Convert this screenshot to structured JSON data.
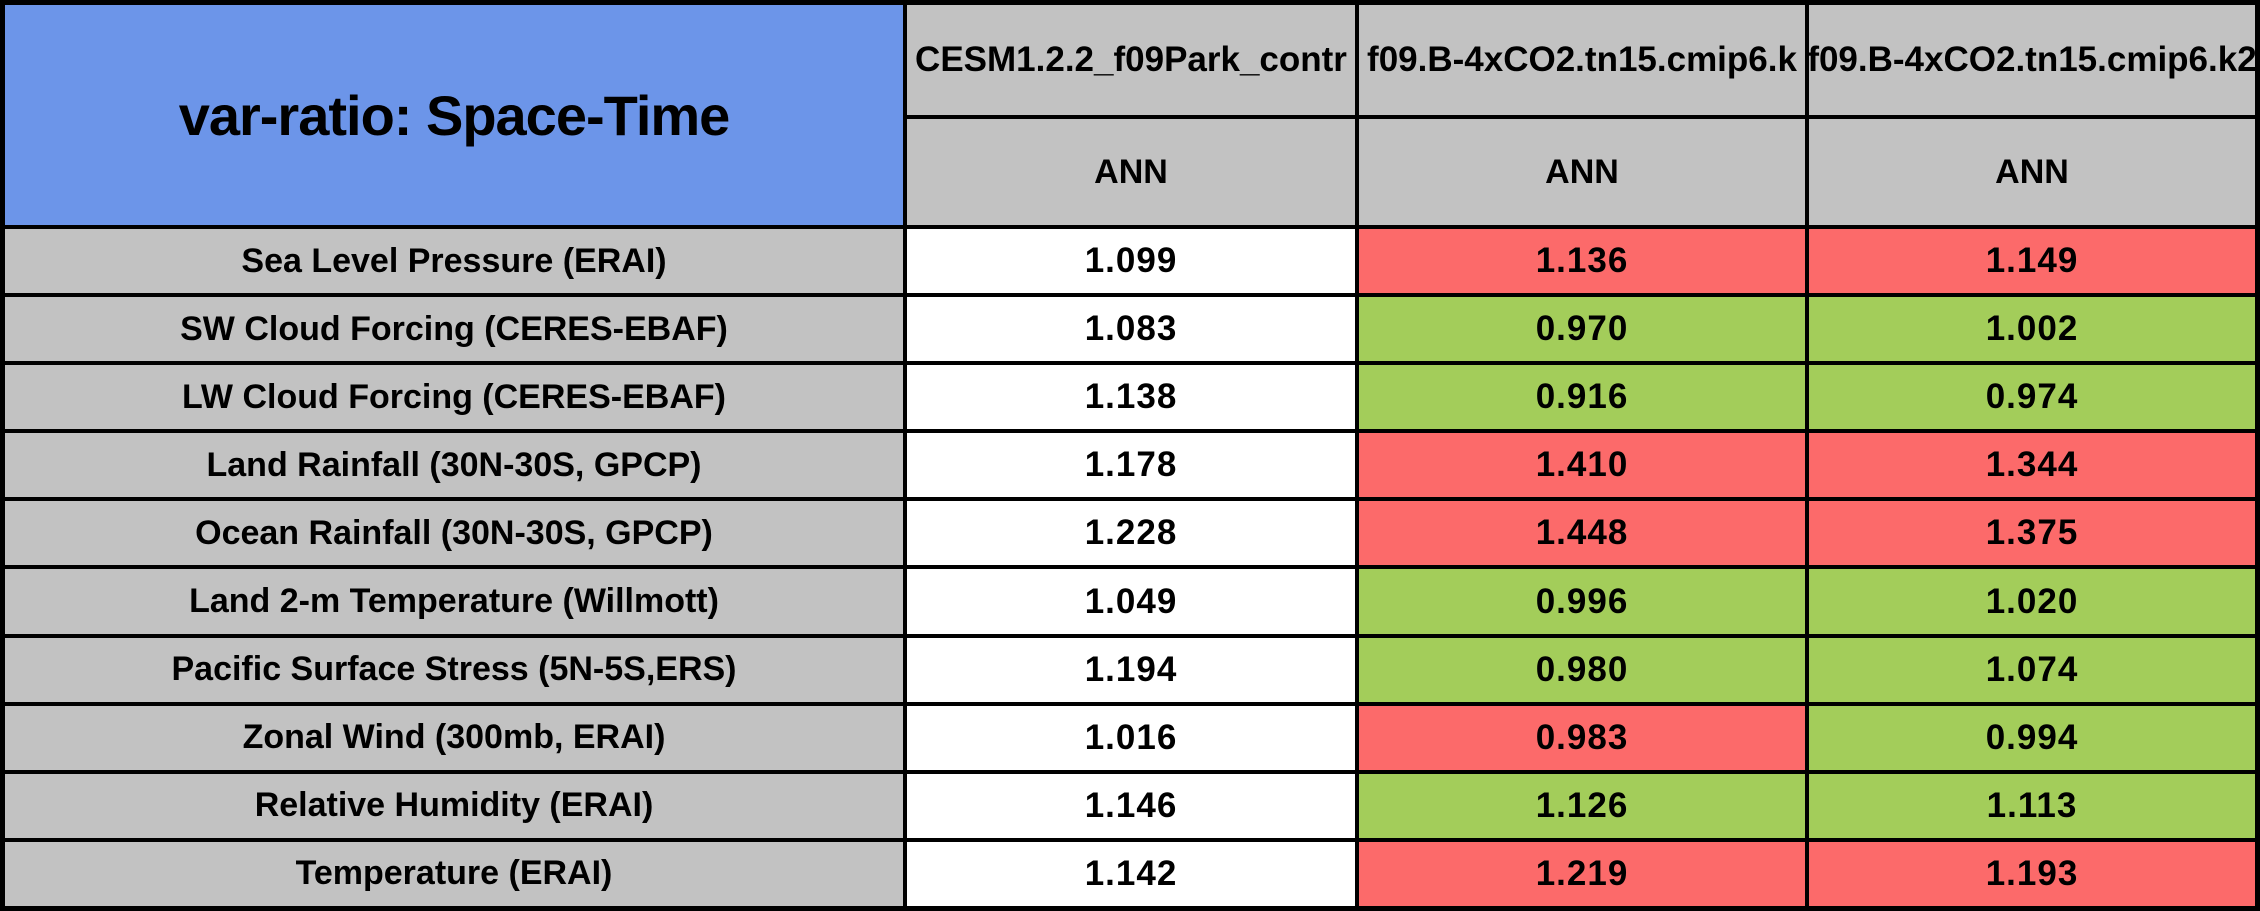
{
  "title": "var-ratio: Space-Time",
  "header": {
    "columns": [
      {
        "model": "CESM1.2.2_f09Park_contr",
        "season": "ANN"
      },
      {
        "model": "f09.B-4xCO2.tn15.cmip6.k",
        "season": "ANN"
      },
      {
        "model": "f09.B-4xCO2.tn15.cmip6.k2",
        "season": "ANN"
      }
    ]
  },
  "rows": [
    {
      "label": "Sea Level Pressure (ERAI)",
      "values": [
        "1.099",
        "1.136",
        "1.149"
      ],
      "cell_colors": [
        "white",
        "red",
        "red"
      ]
    },
    {
      "label": "SW Cloud Forcing (CERES-EBAF)",
      "values": [
        "1.083",
        "0.970",
        "1.002"
      ],
      "cell_colors": [
        "white",
        "green",
        "green"
      ]
    },
    {
      "label": "LW Cloud Forcing (CERES-EBAF)",
      "values": [
        "1.138",
        "0.916",
        "0.974"
      ],
      "cell_colors": [
        "white",
        "green",
        "green"
      ]
    },
    {
      "label": "Land Rainfall (30N-30S, GPCP)",
      "values": [
        "1.178",
        "1.410",
        "1.344"
      ],
      "cell_colors": [
        "white",
        "red",
        "red"
      ]
    },
    {
      "label": "Ocean Rainfall (30N-30S, GPCP)",
      "values": [
        "1.228",
        "1.448",
        "1.375"
      ],
      "cell_colors": [
        "white",
        "red",
        "red"
      ]
    },
    {
      "label": "Land 2-m Temperature (Willmott)",
      "values": [
        "1.049",
        "0.996",
        "1.020"
      ],
      "cell_colors": [
        "white",
        "green",
        "green"
      ]
    },
    {
      "label": "Pacific Surface Stress (5N-5S,ERS)",
      "values": [
        "1.194",
        "0.980",
        "1.074"
      ],
      "cell_colors": [
        "white",
        "green",
        "green"
      ]
    },
    {
      "label": "Zonal Wind (300mb, ERAI)",
      "values": [
        "1.016",
        "0.983",
        "0.994"
      ],
      "cell_colors": [
        "white",
        "red",
        "green"
      ]
    },
    {
      "label": "Relative Humidity (ERAI)",
      "values": [
        "1.146",
        "1.126",
        "1.113"
      ],
      "cell_colors": [
        "white",
        "green",
        "green"
      ]
    },
    {
      "label": "Temperature (ERAI)",
      "values": [
        "1.142",
        "1.219",
        "1.193"
      ],
      "cell_colors": [
        "white",
        "red",
        "red"
      ]
    }
  ],
  "palette": {
    "header_blue": "#6C95E9",
    "header_gray": "#C2C2C2",
    "white": "#FFFFFF",
    "red": "#FC6A6A",
    "green": "#A3CD5A",
    "border_black": "#000000"
  },
  "chart_data": {
    "type": "table",
    "title": "var-ratio: Space-Time",
    "column_headers": [
      "CESM1.2.2_f09Park_contr / ANN",
      "f09.B-4xCO2.tn15.cmip6.k / ANN",
      "f09.B-4xCO2.tn15.cmip6.k2 / ANN"
    ],
    "row_labels": [
      "Sea Level Pressure (ERAI)",
      "SW Cloud Forcing (CERES-EBAF)",
      "LW Cloud Forcing (CERES-EBAF)",
      "Land Rainfall (30N-30S, GPCP)",
      "Ocean Rainfall (30N-30S, GPCP)",
      "Land 2-m Temperature (Willmott)",
      "Pacific Surface Stress (5N-5S,ERS)",
      "Zonal Wind (300mb, ERAI)",
      "Relative Humidity (ERAI)",
      "Temperature (ERAI)"
    ],
    "values": [
      [
        1.099,
        1.136,
        1.149
      ],
      [
        1.083,
        0.97,
        1.002
      ],
      [
        1.138,
        0.916,
        0.974
      ],
      [
        1.178,
        1.41,
        1.344
      ],
      [
        1.228,
        1.448,
        1.375
      ],
      [
        1.049,
        0.996,
        1.02
      ],
      [
        1.194,
        0.98,
        1.074
      ],
      [
        1.016,
        0.983,
        0.994
      ],
      [
        1.146,
        1.126,
        1.113
      ],
      [
        1.142,
        1.219,
        1.193
      ]
    ],
    "cell_colors": [
      [
        "white",
        "red",
        "red"
      ],
      [
        "white",
        "green",
        "green"
      ],
      [
        "white",
        "green",
        "green"
      ],
      [
        "white",
        "red",
        "red"
      ],
      [
        "white",
        "red",
        "red"
      ],
      [
        "white",
        "green",
        "green"
      ],
      [
        "white",
        "green",
        "green"
      ],
      [
        "white",
        "red",
        "green"
      ],
      [
        "white",
        "green",
        "green"
      ],
      [
        "white",
        "red",
        "red"
      ]
    ],
    "legend_position": "none",
    "grid": true
  }
}
